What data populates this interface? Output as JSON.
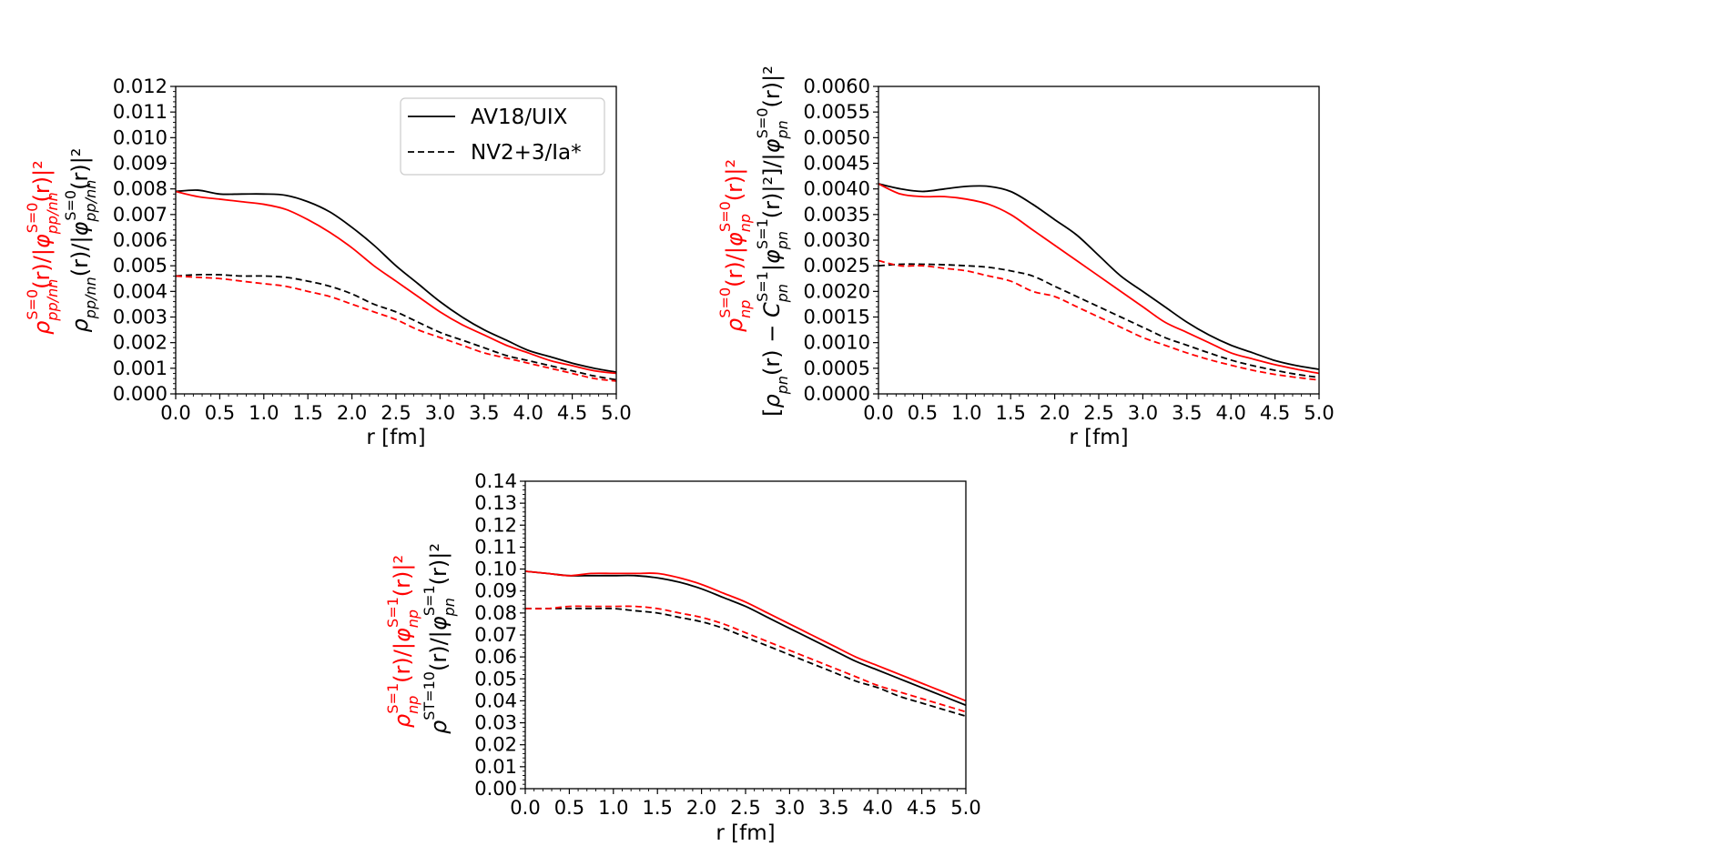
{
  "colors": {
    "black": "#000000",
    "red": "#ff0000"
  },
  "chart_data": [
    {
      "type": "line",
      "ylabel_black": "ρ_pp/nn(r)/|φ_pp/nn^{S=0}(r)|²",
      "ylabel_red": "ρ_pp/nn^{S=0}(r)/|φ_pp/nn^{S=0}(r)|²",
      "xlabel": "r [fm]",
      "xlim": [
        0,
        5
      ],
      "ylim": [
        0,
        0.012
      ],
      "xticks": [
        "0.0",
        "0.5",
        "1.0",
        "1.5",
        "2.0",
        "2.5",
        "3.0",
        "3.5",
        "4.0",
        "4.5",
        "5.0"
      ],
      "yticks": [
        "0.000",
        "0.001",
        "0.002",
        "0.003",
        "0.004",
        "0.005",
        "0.006",
        "0.007",
        "0.008",
        "0.009",
        "0.010",
        "0.011",
        "0.012"
      ],
      "legend": {
        "position": "upper-right",
        "entries": [
          {
            "label": "AV18/UIX",
            "style": "solid"
          },
          {
            "label": "NV2+3/Ia*",
            "style": "dashed"
          }
        ]
      },
      "x": [
        0,
        0.25,
        0.5,
        0.75,
        1.0,
        1.25,
        1.5,
        1.75,
        2.0,
        2.25,
        2.5,
        2.75,
        3.0,
        3.25,
        3.5,
        3.75,
        4.0,
        4.25,
        4.5,
        4.75,
        5.0
      ],
      "series": [
        {
          "name": "AV18/UIX ρ_pp/nn",
          "color": "black",
          "style": "solid",
          "values": [
            0.0079,
            0.00795,
            0.0078,
            0.0078,
            0.0078,
            0.00775,
            0.0075,
            0.0071,
            0.0065,
            0.0058,
            0.005,
            0.0043,
            0.0036,
            0.003,
            0.0025,
            0.0021,
            0.0017,
            0.00145,
            0.0012,
            0.001,
            0.00085
          ]
        },
        {
          "name": "AV18/UIX S=0",
          "color": "red",
          "style": "solid",
          "values": [
            0.0079,
            0.0077,
            0.0076,
            0.0075,
            0.0074,
            0.0072,
            0.0068,
            0.0063,
            0.0057,
            0.005,
            0.0044,
            0.0038,
            0.0032,
            0.0027,
            0.0023,
            0.0019,
            0.0016,
            0.0013,
            0.0011,
            0.0009,
            0.0008
          ]
        },
        {
          "name": "NV2+3/Ia* ρ_pp/nn",
          "color": "black",
          "style": "dashed",
          "values": [
            0.0046,
            0.00465,
            0.00465,
            0.0046,
            0.0046,
            0.00455,
            0.0044,
            0.0042,
            0.0039,
            0.0035,
            0.0032,
            0.0028,
            0.0024,
            0.0021,
            0.0018,
            0.0015,
            0.0013,
            0.0011,
            0.0009,
            0.0007,
            0.00055
          ]
        },
        {
          "name": "NV2+3/Ia* S=0",
          "color": "red",
          "style": "dashed",
          "values": [
            0.0046,
            0.00455,
            0.0045,
            0.0044,
            0.0043,
            0.0042,
            0.004,
            0.0038,
            0.0035,
            0.0032,
            0.0029,
            0.0025,
            0.0022,
            0.0019,
            0.0016,
            0.0014,
            0.0012,
            0.001,
            0.0008,
            0.0006,
            0.0005
          ]
        }
      ]
    },
    {
      "type": "line",
      "ylabel_black": "[ρ_pn(r) − C_pn^{S=1}|φ_pn^{S=1}(r)|²]/|φ_pn^{S=0}(r)|²",
      "ylabel_red": "ρ_np^{S=0}(r)/|φ_np^{S=0}(r)|²",
      "xlabel": "r [fm]",
      "xlim": [
        0,
        5
      ],
      "ylim": [
        0,
        0.006
      ],
      "xticks": [
        "0.0",
        "0.5",
        "1.0",
        "1.5",
        "2.0",
        "2.5",
        "3.0",
        "3.5",
        "4.0",
        "4.5",
        "5.0"
      ],
      "yticks": [
        "0.0000",
        "0.0005",
        "0.0010",
        "0.0015",
        "0.0020",
        "0.0025",
        "0.0030",
        "0.0035",
        "0.0040",
        "0.0045",
        "0.0050",
        "0.0055",
        "0.0060"
      ],
      "x": [
        0,
        0.25,
        0.5,
        0.75,
        1.0,
        1.25,
        1.5,
        1.75,
        2.0,
        2.25,
        2.5,
        2.75,
        3.0,
        3.25,
        3.5,
        3.75,
        4.0,
        4.25,
        4.5,
        4.75,
        5.0
      ],
      "series": [
        {
          "name": "AV18/UIX pn",
          "color": "black",
          "style": "solid",
          "values": [
            0.0041,
            0.004,
            0.00395,
            0.004,
            0.00405,
            0.00405,
            0.00395,
            0.0037,
            0.0034,
            0.0031,
            0.0027,
            0.0023,
            0.002,
            0.0017,
            0.0014,
            0.00115,
            0.00095,
            0.0008,
            0.00065,
            0.00055,
            0.00048
          ]
        },
        {
          "name": "AV18/UIX S=0",
          "color": "red",
          "style": "solid",
          "values": [
            0.0041,
            0.0039,
            0.00385,
            0.00385,
            0.0038,
            0.0037,
            0.0035,
            0.0032,
            0.0029,
            0.0026,
            0.0023,
            0.002,
            0.0017,
            0.0014,
            0.0012,
            0.001,
            0.0008,
            0.00068,
            0.00057,
            0.00048,
            0.0004
          ]
        },
        {
          "name": "NV2+3/Ia* pn",
          "color": "black",
          "style": "dashed",
          "values": [
            0.0025,
            0.00253,
            0.00253,
            0.00252,
            0.0025,
            0.00247,
            0.0024,
            0.0023,
            0.0021,
            0.0019,
            0.0017,
            0.0015,
            0.0013,
            0.0011,
            0.00095,
            0.0008,
            0.00066,
            0.00055,
            0.00046,
            0.00038,
            0.00032
          ]
        },
        {
          "name": "NV2+3/Ia* S=0",
          "color": "red",
          "style": "dashed",
          "values": [
            0.0026,
            0.0025,
            0.0025,
            0.00245,
            0.0024,
            0.0023,
            0.0022,
            0.002,
            0.0019,
            0.0017,
            0.0015,
            0.0013,
            0.0011,
            0.00095,
            0.0008,
            0.00067,
            0.00056,
            0.00046,
            0.00038,
            0.00032,
            0.00027
          ]
        }
      ]
    },
    {
      "type": "line",
      "ylabel_black": "ρ^{ST=10}(r)/|φ_pn^{S=1}(r)|²",
      "ylabel_red": "ρ_np^{S=1}(r)/|φ_np^{S=1}(r)|²",
      "xlabel": "r [fm]",
      "xlim": [
        0,
        5
      ],
      "ylim": [
        0,
        0.14
      ],
      "xticks": [
        "0.0",
        "0.5",
        "1.0",
        "1.5",
        "2.0",
        "2.5",
        "3.0",
        "3.5",
        "4.0",
        "4.5",
        "5.0"
      ],
      "yticks": [
        "0.00",
        "0.01",
        "0.02",
        "0.03",
        "0.04",
        "0.05",
        "0.06",
        "0.07",
        "0.08",
        "0.09",
        "0.10",
        "0.11",
        "0.12",
        "0.13",
        "0.14"
      ],
      "x": [
        0,
        0.25,
        0.5,
        0.75,
        1.0,
        1.25,
        1.5,
        1.75,
        2.0,
        2.25,
        2.5,
        2.75,
        3.0,
        3.25,
        3.5,
        3.75,
        4.0,
        4.25,
        4.5,
        4.75,
        5.0
      ],
      "series": [
        {
          "name": "AV18/UIX ST=10",
          "color": "black",
          "style": "solid",
          "values": [
            0.099,
            0.098,
            0.097,
            0.097,
            0.097,
            0.097,
            0.096,
            0.094,
            0.091,
            0.087,
            0.083,
            0.078,
            0.073,
            0.068,
            0.063,
            0.058,
            0.054,
            0.05,
            0.046,
            0.042,
            0.038
          ]
        },
        {
          "name": "AV18/UIX S=1",
          "color": "red",
          "style": "solid",
          "values": [
            0.099,
            0.098,
            0.097,
            0.098,
            0.098,
            0.098,
            0.098,
            0.096,
            0.093,
            0.089,
            0.085,
            0.08,
            0.075,
            0.07,
            0.065,
            0.06,
            0.056,
            0.052,
            0.048,
            0.044,
            0.04
          ]
        },
        {
          "name": "NV2+3/Ia* ST=10",
          "color": "black",
          "style": "dashed",
          "values": [
            0.082,
            0.082,
            0.082,
            0.082,
            0.082,
            0.081,
            0.08,
            0.078,
            0.076,
            0.073,
            0.069,
            0.065,
            0.061,
            0.057,
            0.053,
            0.049,
            0.046,
            0.042,
            0.039,
            0.036,
            0.033
          ]
        },
        {
          "name": "NV2+3/Ia* S=1",
          "color": "red",
          "style": "dashed",
          "values": [
            0.082,
            0.082,
            0.083,
            0.083,
            0.083,
            0.083,
            0.082,
            0.08,
            0.078,
            0.075,
            0.071,
            0.067,
            0.063,
            0.059,
            0.055,
            0.051,
            0.047,
            0.044,
            0.041,
            0.038,
            0.035
          ]
        }
      ]
    }
  ]
}
